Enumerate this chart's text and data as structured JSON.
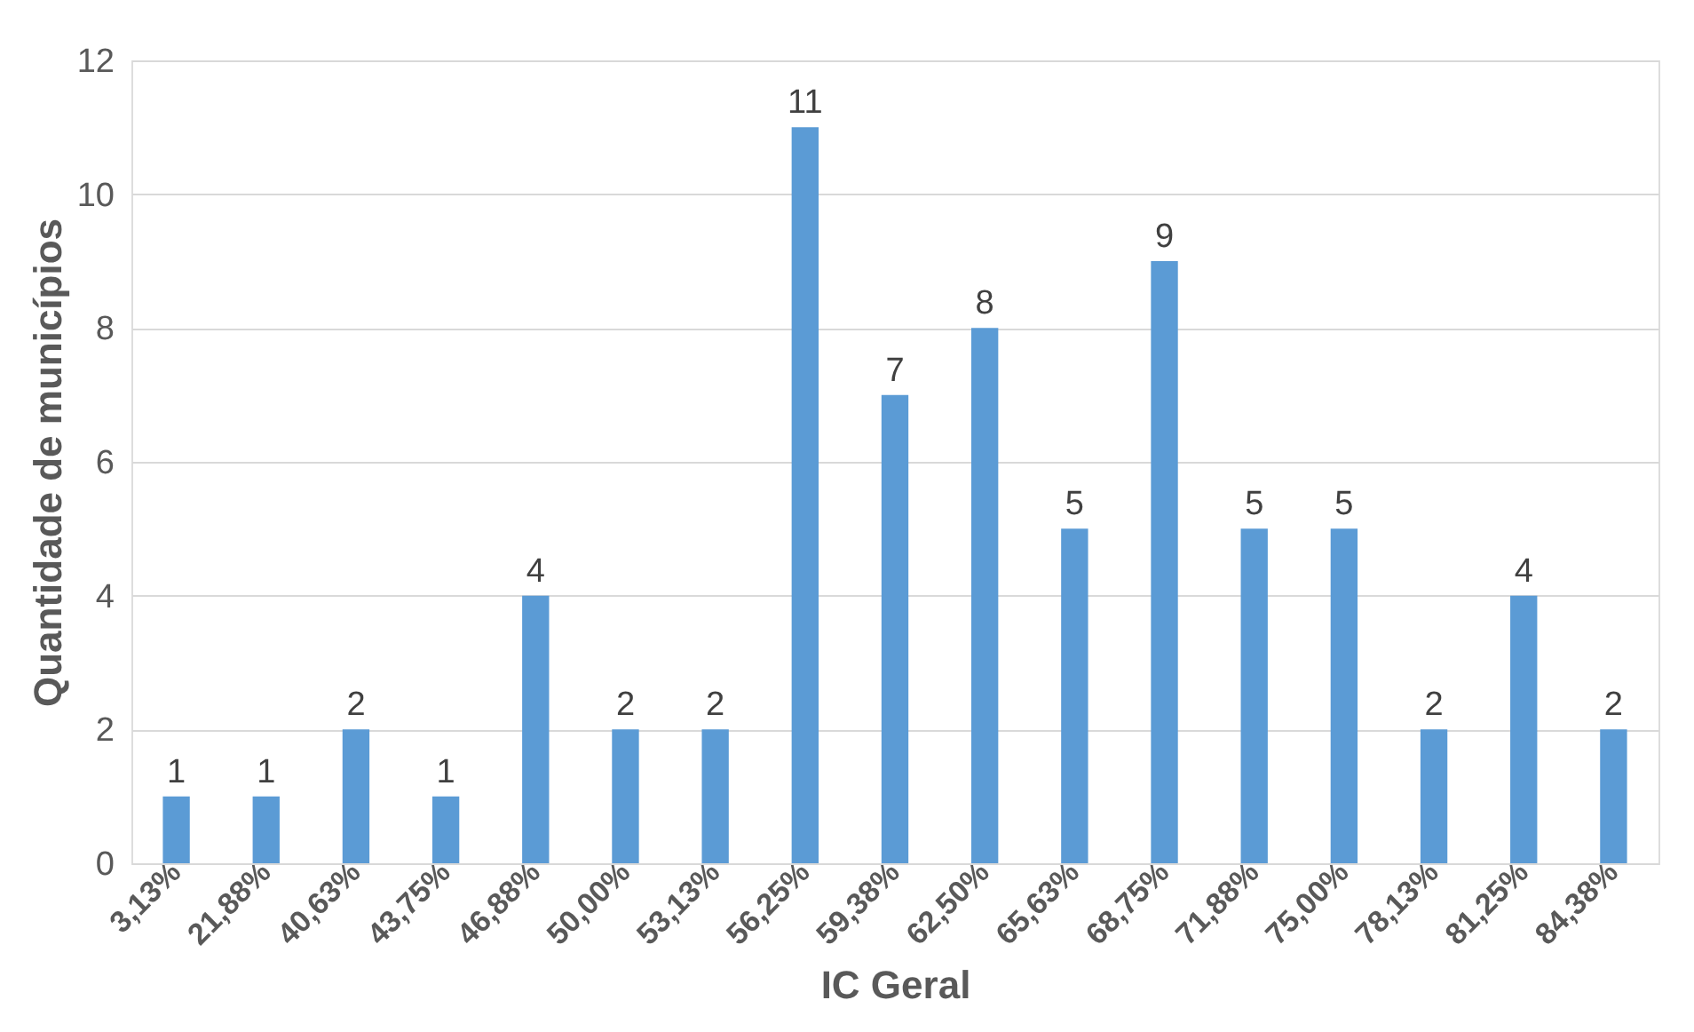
{
  "chart_data": {
    "type": "bar",
    "xlabel": "IC Geral",
    "ylabel": "Quantidade de municípios",
    "categories": [
      "3,13%",
      "21,88%",
      "40,63%",
      "43,75%",
      "46,88%",
      "50,00%",
      "53,13%",
      "56,25%",
      "59,38%",
      "62,50%",
      "65,63%",
      "68,75%",
      "71,88%",
      "75,00%",
      "78,13%",
      "81,25%",
      "84,38%"
    ],
    "values": [
      1,
      1,
      2,
      1,
      4,
      2,
      2,
      11,
      7,
      8,
      5,
      9,
      5,
      5,
      2,
      4,
      2
    ],
    "color": "#5b9bd5",
    "ylim": [
      0,
      12
    ],
    "yticks": [
      0,
      2,
      4,
      6,
      8,
      10,
      12
    ],
    "grid": "y",
    "data_labels": true
  }
}
